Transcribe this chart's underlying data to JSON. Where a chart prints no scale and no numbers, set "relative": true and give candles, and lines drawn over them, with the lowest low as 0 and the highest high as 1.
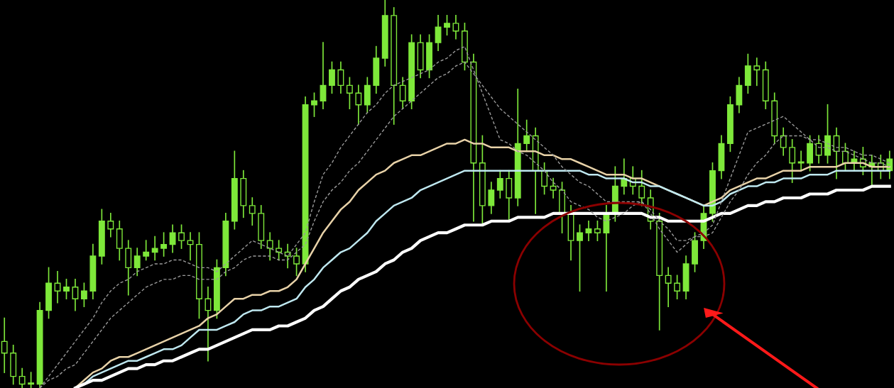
{
  "chart_data": {
    "type": "candlestick",
    "relative": true,
    "color": "#7ee83a",
    "categories": [
      null,
      null,
      null,
      null,
      null,
      null,
      null,
      null,
      null,
      null,
      null,
      null,
      null,
      null,
      null,
      null,
      null,
      null,
      null,
      null,
      null,
      null,
      null,
      null,
      null,
      null,
      null,
      null,
      null,
      null,
      null,
      null,
      null,
      null,
      null,
      null,
      null,
      null,
      null,
      null,
      null,
      null,
      null,
      null,
      null,
      null,
      null,
      null,
      null,
      null,
      null,
      null,
      null,
      null,
      null,
      null,
      null,
      null,
      null,
      null,
      null,
      null,
      null,
      null,
      null,
      null,
      null,
      null,
      null,
      null,
      null,
      null,
      null,
      null,
      null,
      null,
      null,
      null,
      null,
      null,
      null,
      null,
      null,
      null,
      null,
      null,
      null,
      null,
      null,
      null,
      null,
      null,
      null,
      null,
      null,
      null,
      null,
      null,
      null,
      null,
      null
    ],
    "ohlc": [
      [
        0.12,
        0.18,
        0.04,
        0.09
      ],
      [
        0.09,
        0.11,
        0.01,
        0.03
      ],
      [
        0.03,
        0.05,
        0.0,
        0.01
      ],
      [
        0.01,
        0.04,
        0.0,
        0.01
      ],
      [
        0.01,
        0.22,
        0.0,
        0.2
      ],
      [
        0.2,
        0.31,
        0.18,
        0.27
      ],
      [
        0.27,
        0.3,
        0.22,
        0.25
      ],
      [
        0.25,
        0.28,
        0.23,
        0.26
      ],
      [
        0.26,
        0.28,
        0.2,
        0.23
      ],
      [
        0.23,
        0.27,
        0.21,
        0.25
      ],
      [
        0.25,
        0.37,
        0.23,
        0.34
      ],
      [
        0.34,
        0.46,
        0.32,
        0.43
      ],
      [
        0.43,
        0.45,
        0.39,
        0.41
      ],
      [
        0.41,
        0.43,
        0.33,
        0.36
      ],
      [
        0.36,
        0.38,
        0.24,
        0.31
      ],
      [
        0.31,
        0.36,
        0.29,
        0.34
      ],
      [
        0.34,
        0.38,
        0.33,
        0.35
      ],
      [
        0.35,
        0.39,
        0.33,
        0.36
      ],
      [
        0.36,
        0.4,
        0.34,
        0.37
      ],
      [
        0.37,
        0.42,
        0.35,
        0.4
      ],
      [
        0.4,
        0.42,
        0.36,
        0.38
      ],
      [
        0.38,
        0.4,
        0.33,
        0.37
      ],
      [
        0.37,
        0.4,
        0.18,
        0.23
      ],
      [
        0.23,
        0.26,
        0.07,
        0.2
      ],
      [
        0.2,
        0.33,
        0.18,
        0.31
      ],
      [
        0.31,
        0.45,
        0.29,
        0.43
      ],
      [
        0.43,
        0.61,
        0.41,
        0.54
      ],
      [
        0.54,
        0.56,
        0.44,
        0.47
      ],
      [
        0.47,
        0.49,
        0.42,
        0.45
      ],
      [
        0.45,
        0.47,
        0.36,
        0.38
      ],
      [
        0.38,
        0.4,
        0.33,
        0.36
      ],
      [
        0.36,
        0.38,
        0.33,
        0.35
      ],
      [
        0.35,
        0.37,
        0.31,
        0.34
      ],
      [
        0.34,
        0.36,
        0.29,
        0.32
      ],
      [
        0.32,
        0.75,
        0.3,
        0.73
      ],
      [
        0.73,
        0.76,
        0.7,
        0.74
      ],
      [
        0.74,
        0.89,
        0.72,
        0.78
      ],
      [
        0.78,
        0.84,
        0.76,
        0.82
      ],
      [
        0.82,
        0.84,
        0.76,
        0.78
      ],
      [
        0.78,
        0.8,
        0.72,
        0.76
      ],
      [
        0.76,
        0.78,
        0.68,
        0.73
      ],
      [
        0.73,
        0.8,
        0.71,
        0.78
      ],
      [
        0.78,
        0.88,
        0.76,
        0.85
      ],
      [
        0.85,
        1.0,
        0.83,
        0.96
      ],
      [
        0.96,
        0.98,
        0.68,
        0.78
      ],
      [
        0.78,
        0.8,
        0.72,
        0.74
      ],
      [
        0.74,
        0.91,
        0.72,
        0.89
      ],
      [
        0.89,
        0.91,
        0.8,
        0.82
      ],
      [
        0.82,
        0.91,
        0.8,
        0.89
      ],
      [
        0.89,
        0.96,
        0.87,
        0.93
      ],
      [
        0.93,
        0.96,
        0.91,
        0.94
      ],
      [
        0.94,
        0.96,
        0.9,
        0.92
      ],
      [
        0.92,
        0.94,
        0.82,
        0.84
      ],
      [
        0.84,
        0.86,
        0.43,
        0.58
      ],
      [
        0.58,
        0.65,
        0.42,
        0.47
      ],
      [
        0.47,
        0.53,
        0.45,
        0.51
      ],
      [
        0.51,
        0.56,
        0.49,
        0.54
      ],
      [
        0.54,
        0.56,
        0.43,
        0.49
      ],
      [
        0.49,
        0.77,
        0.47,
        0.63
      ],
      [
        0.63,
        0.69,
        0.61,
        0.65
      ],
      [
        0.65,
        0.67,
        0.45,
        0.56
      ],
      [
        0.56,
        0.58,
        0.5,
        0.52
      ],
      [
        0.52,
        0.54,
        0.49,
        0.51
      ],
      [
        0.51,
        0.53,
        0.4,
        0.45
      ],
      [
        0.45,
        0.47,
        0.33,
        0.38
      ],
      [
        0.38,
        0.42,
        0.25,
        0.4
      ],
      [
        0.4,
        0.43,
        0.38,
        0.41
      ],
      [
        0.41,
        0.43,
        0.38,
        0.4
      ],
      [
        0.4,
        0.47,
        0.25,
        0.45
      ],
      [
        0.45,
        0.57,
        0.43,
        0.52
      ],
      [
        0.52,
        0.59,
        0.5,
        0.54
      ],
      [
        0.54,
        0.57,
        0.5,
        0.52
      ],
      [
        0.52,
        0.56,
        0.47,
        0.49
      ],
      [
        0.49,
        0.51,
        0.41,
        0.43
      ],
      [
        0.43,
        0.45,
        0.15,
        0.29
      ],
      [
        0.29,
        0.31,
        0.21,
        0.27
      ],
      [
        0.27,
        0.29,
        0.23,
        0.25
      ],
      [
        0.25,
        0.34,
        0.23,
        0.32
      ],
      [
        0.32,
        0.4,
        0.3,
        0.38
      ],
      [
        0.38,
        0.47,
        0.36,
        0.45
      ],
      [
        0.45,
        0.58,
        0.43,
        0.56
      ],
      [
        0.56,
        0.65,
        0.54,
        0.63
      ],
      [
        0.63,
        0.75,
        0.61,
        0.73
      ],
      [
        0.73,
        0.8,
        0.71,
        0.78
      ],
      [
        0.78,
        0.86,
        0.76,
        0.83
      ],
      [
        0.83,
        0.85,
        0.78,
        0.82
      ],
      [
        0.82,
        0.84,
        0.72,
        0.74
      ],
      [
        0.74,
        0.76,
        0.63,
        0.65
      ],
      [
        0.65,
        0.67,
        0.6,
        0.62
      ],
      [
        0.62,
        0.64,
        0.53,
        0.58
      ],
      [
        0.58,
        0.61,
        0.56,
        0.58
      ],
      [
        0.58,
        0.65,
        0.56,
        0.63
      ],
      [
        0.63,
        0.65,
        0.58,
        0.6
      ],
      [
        0.6,
        0.73,
        0.58,
        0.65
      ],
      [
        0.65,
        0.67,
        0.54,
        0.61
      ],
      [
        0.61,
        0.63,
        0.56,
        0.58
      ],
      [
        0.58,
        0.61,
        0.56,
        0.59
      ],
      [
        0.59,
        0.62,
        0.55,
        0.57
      ],
      [
        0.57,
        0.6,
        0.52,
        0.58
      ],
      [
        0.58,
        0.6,
        0.54,
        0.56
      ],
      [
        0.56,
        0.61,
        0.54,
        0.59
      ]
    ],
    "series": [
      {
        "type": "line",
        "color": "#e8d2a8",
        "line_style": "solid",
        "values": [
          null,
          null,
          null,
          null,
          null,
          null,
          null,
          null,
          0.0,
          0.02,
          0.04,
          0.05,
          0.07,
          0.08,
          0.08,
          0.09,
          0.1,
          0.11,
          0.12,
          0.13,
          0.14,
          0.15,
          0.16,
          0.18,
          0.19,
          0.21,
          0.23,
          0.23,
          0.24,
          0.24,
          0.25,
          0.25,
          0.26,
          0.28,
          0.32,
          0.36,
          0.4,
          0.43,
          0.46,
          0.48,
          0.51,
          0.53,
          0.55,
          0.56,
          0.58,
          0.59,
          0.6,
          0.6,
          0.61,
          0.62,
          0.63,
          0.63,
          0.64,
          0.63,
          0.63,
          0.62,
          0.62,
          0.62,
          0.61,
          0.61,
          0.61,
          0.6,
          0.6,
          0.59,
          0.59,
          0.58,
          0.57,
          0.56,
          0.55,
          0.55,
          0.55,
          0.54,
          0.54,
          0.53,
          0.52,
          0.51,
          0.5,
          0.49,
          0.48,
          0.47,
          0.48,
          0.49,
          0.51,
          0.52,
          0.53,
          0.54,
          0.54,
          0.55,
          0.56,
          0.56,
          0.56,
          0.57,
          0.57,
          0.57,
          0.57,
          0.58,
          0.58,
          0.58,
          0.57,
          0.57,
          0.57
        ]
      },
      {
        "type": "line",
        "color": "#bfe8f0",
        "line_style": "solid",
        "values": [
          null,
          null,
          null,
          null,
          null,
          null,
          null,
          null,
          0.0,
          0.01,
          0.03,
          0.04,
          0.05,
          0.06,
          0.07,
          0.07,
          0.08,
          0.09,
          0.1,
          0.1,
          0.11,
          0.13,
          0.15,
          0.15,
          0.15,
          0.16,
          0.17,
          0.19,
          0.2,
          0.2,
          0.21,
          0.21,
          0.22,
          0.23,
          0.26,
          0.28,
          0.31,
          0.33,
          0.35,
          0.36,
          0.38,
          0.4,
          0.43,
          0.45,
          0.47,
          0.48,
          0.49,
          0.51,
          0.52,
          0.53,
          0.54,
          0.55,
          0.56,
          0.56,
          0.56,
          0.56,
          0.56,
          0.56,
          0.56,
          0.56,
          0.56,
          0.56,
          0.56,
          0.56,
          0.56,
          0.56,
          0.55,
          0.55,
          0.54,
          0.54,
          0.54,
          0.53,
          0.53,
          0.52,
          0.52,
          0.51,
          0.5,
          0.49,
          0.48,
          0.47,
          0.47,
          0.48,
          0.5,
          0.51,
          0.52,
          0.52,
          0.53,
          0.53,
          0.54,
          0.54,
          0.54,
          0.55,
          0.55,
          0.55,
          0.56,
          0.56,
          0.56,
          0.56,
          0.56,
          0.56,
          0.56
        ]
      },
      {
        "type": "line",
        "color": "#ffffff",
        "line_style": "solid",
        "values": [
          null,
          null,
          null,
          null,
          null,
          null,
          null,
          null,
          0.0,
          0.01,
          0.02,
          0.02,
          0.03,
          0.04,
          0.05,
          0.05,
          0.06,
          0.06,
          0.07,
          0.07,
          0.08,
          0.09,
          0.1,
          0.1,
          0.11,
          0.12,
          0.13,
          0.14,
          0.15,
          0.15,
          0.15,
          0.16,
          0.16,
          0.17,
          0.18,
          0.2,
          0.21,
          0.23,
          0.25,
          0.26,
          0.28,
          0.29,
          0.3,
          0.32,
          0.33,
          0.35,
          0.36,
          0.38,
          0.39,
          0.4,
          0.4,
          0.41,
          0.42,
          0.42,
          0.42,
          0.43,
          0.43,
          0.43,
          0.44,
          0.44,
          0.44,
          0.44,
          0.45,
          0.45,
          0.45,
          0.45,
          0.45,
          0.45,
          0.45,
          0.45,
          0.45,
          0.45,
          0.45,
          0.44,
          0.44,
          0.43,
          0.43,
          0.43,
          0.43,
          0.43,
          0.44,
          0.45,
          0.45,
          0.46,
          0.47,
          0.47,
          0.48,
          0.48,
          0.49,
          0.49,
          0.49,
          0.5,
          0.5,
          0.5,
          0.51,
          0.51,
          0.51,
          0.51,
          0.52,
          0.52,
          0.52
        ]
      },
      {
        "type": "line",
        "color": "#9a9a9a",
        "line_style": "dashed",
        "values": [
          null,
          null,
          null,
          null,
          0.0,
          0.03,
          0.06,
          0.09,
          0.12,
          0.15,
          0.18,
          0.22,
          0.25,
          0.27,
          0.28,
          0.3,
          0.31,
          0.32,
          0.32,
          0.33,
          0.33,
          0.32,
          0.31,
          0.31,
          0.3,
          0.32,
          0.34,
          0.36,
          0.38,
          0.37,
          0.36,
          0.35,
          0.34,
          0.37,
          0.4,
          0.48,
          0.55,
          0.58,
          0.62,
          0.65,
          0.68,
          0.71,
          0.73,
          0.76,
          0.78,
          0.79,
          0.8,
          0.81,
          0.82,
          0.84,
          0.85,
          0.87,
          0.88,
          0.82,
          0.76,
          0.7,
          0.64,
          0.63,
          0.61,
          0.6,
          0.58,
          0.56,
          0.53,
          0.51,
          0.48,
          0.47,
          0.46,
          0.44,
          0.43,
          0.44,
          0.45,
          0.47,
          0.48,
          0.45,
          0.41,
          0.38,
          0.35,
          0.37,
          0.39,
          0.4,
          0.42,
          0.48,
          0.54,
          0.6,
          0.66,
          0.67,
          0.68,
          0.69,
          0.7,
          0.68,
          0.66,
          0.64,
          0.62,
          0.62,
          0.61,
          0.61,
          0.6,
          0.59,
          0.58,
          0.58,
          0.57
        ]
      },
      {
        "type": "line",
        "color": "#9a9a9a",
        "line_style": "dashed",
        "values": [
          null,
          null,
          null,
          null,
          0.0,
          0.02,
          0.03,
          0.05,
          0.06,
          0.09,
          0.12,
          0.15,
          0.18,
          0.2,
          0.22,
          0.24,
          0.26,
          0.27,
          0.28,
          0.28,
          0.29,
          0.29,
          0.28,
          0.28,
          0.28,
          0.3,
          0.31,
          0.33,
          0.34,
          0.34,
          0.34,
          0.33,
          0.33,
          0.35,
          0.37,
          0.43,
          0.48,
          0.51,
          0.53,
          0.56,
          0.58,
          0.61,
          0.64,
          0.67,
          0.7,
          0.72,
          0.74,
          0.76,
          0.78,
          0.8,
          0.81,
          0.83,
          0.84,
          0.81,
          0.78,
          0.75,
          0.72,
          0.7,
          0.68,
          0.66,
          0.64,
          0.62,
          0.6,
          0.57,
          0.55,
          0.53,
          0.52,
          0.5,
          0.48,
          0.48,
          0.48,
          0.48,
          0.48,
          0.46,
          0.43,
          0.41,
          0.38,
          0.38,
          0.39,
          0.39,
          0.4,
          0.44,
          0.48,
          0.51,
          0.55,
          0.58,
          0.6,
          0.63,
          0.65,
          0.65,
          0.65,
          0.64,
          0.64,
          0.63,
          0.62,
          0.62,
          0.61,
          0.6,
          0.6,
          0.59,
          0.58
        ]
      }
    ]
  }
}
